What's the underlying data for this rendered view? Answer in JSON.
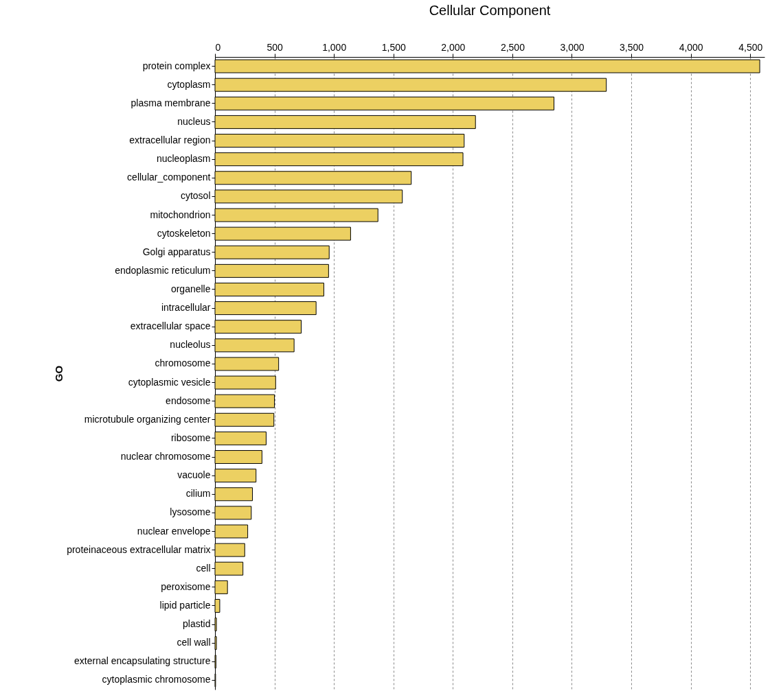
{
  "chart_data": {
    "type": "bar",
    "orientation": "horizontal",
    "title": "Cellular Component",
    "ylabel": "GO",
    "categories": [
      "protein complex",
      "cytoplasm",
      "plasma membrane",
      "nucleus",
      "extracellular region",
      "nucleoplasm",
      "cellular_component",
      "cytosol",
      "mitochondrion",
      "cytoskeleton",
      "Golgi apparatus",
      "endoplasmic reticulum",
      "organelle",
      "intracellular",
      "extracellular space",
      "nucleolus",
      "chromosome",
      "cytoplasmic vesicle",
      "endosome",
      "microtubule organizing center",
      "ribosome",
      "nuclear chromosome",
      "vacuole",
      "cilium",
      "lysosome",
      "nuclear envelope",
      "proteinaceous extracellular matrix",
      "cell",
      "peroxisome",
      "lipid particle",
      "plastid",
      "cell wall",
      "external encapsulating structure",
      "cytoplasmic chromosome"
    ],
    "values": [
      4580,
      3290,
      2850,
      2190,
      2095,
      2085,
      1650,
      1575,
      1370,
      1140,
      960,
      955,
      915,
      850,
      725,
      665,
      535,
      510,
      500,
      495,
      430,
      395,
      345,
      315,
      305,
      275,
      250,
      235,
      105,
      40,
      12,
      12,
      8,
      5
    ],
    "color": "#ecd062",
    "xlim": [
      0,
      4620
    ],
    "xticks": [
      {
        "value": 0,
        "label": "0"
      },
      {
        "value": 500,
        "label": "500"
      },
      {
        "value": 1000,
        "label": "1,000"
      },
      {
        "value": 1500,
        "label": "1,500"
      },
      {
        "value": 2000,
        "label": "2,000"
      },
      {
        "value": 2500,
        "label": "2,500"
      },
      {
        "value": 3000,
        "label": "3,000"
      },
      {
        "value": 3500,
        "label": "3,500"
      },
      {
        "value": 4000,
        "label": "4,000"
      },
      {
        "value": 4500,
        "label": "4,500"
      }
    ],
    "grid": "x"
  }
}
